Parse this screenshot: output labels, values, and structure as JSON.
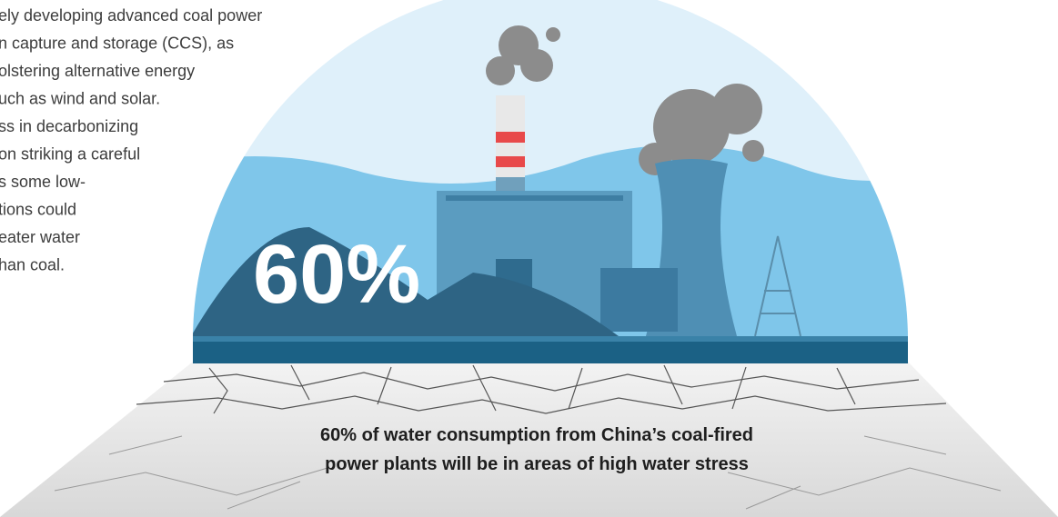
{
  "body_text": [
    "ely developing advanced coal power",
    "n capture and storage (CCS), as",
    "olstering alternative energy",
    "uch as wind and solar.",
    "ss in decarbonizing",
    "on striking a careful",
    "s some low-",
    "tions could",
    "eater water",
    "han coal."
  ],
  "headline": "60%",
  "caption": [
    "60% of water consumption from China’s coal-fired",
    "power plants will be in areas of high water stress"
  ]
}
